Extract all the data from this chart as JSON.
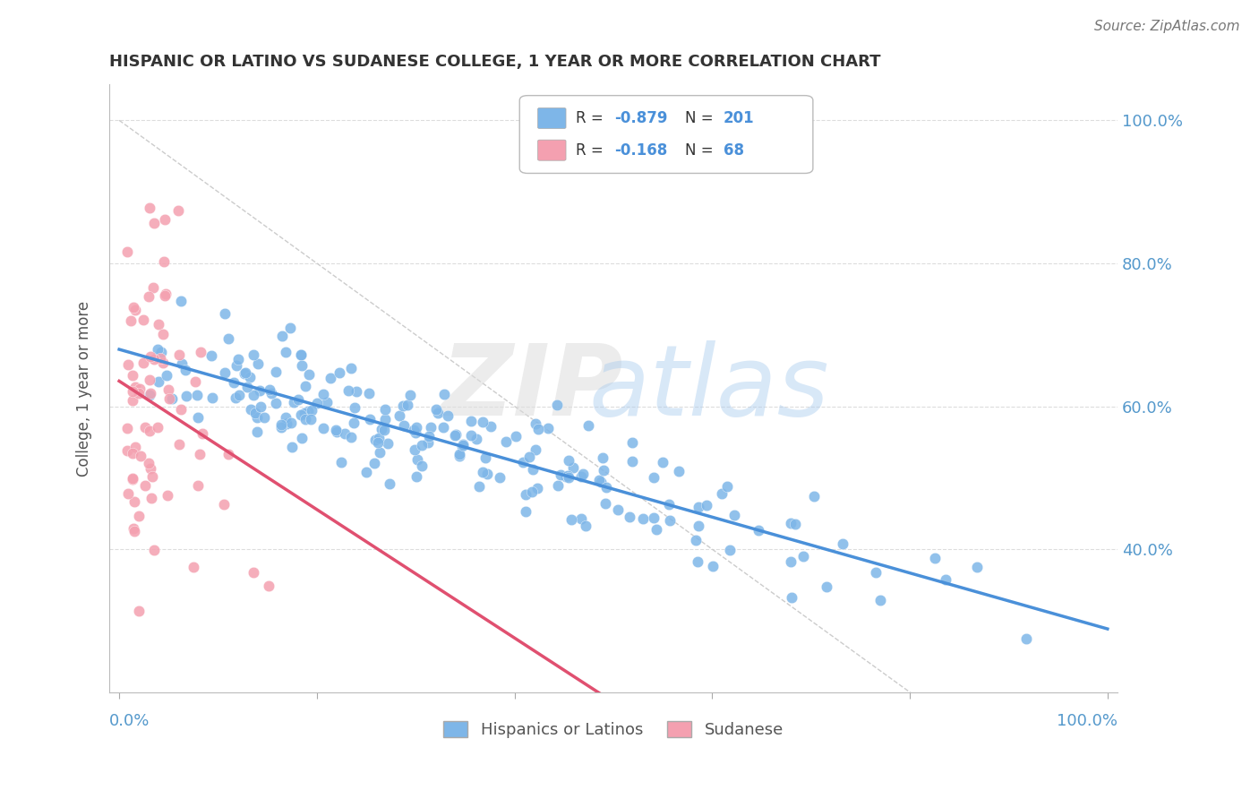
{
  "title": "HISPANIC OR LATINO VS SUDANESE COLLEGE, 1 YEAR OR MORE CORRELATION CHART",
  "source": "Source: ZipAtlas.com",
  "ylabel": "College, 1 year or more",
  "legend_label1": "Hispanics or Latinos",
  "legend_label2": "Sudanese",
  "r1": -0.879,
  "n1": 201,
  "r2": -0.168,
  "n2": 68,
  "blue_color": "#7EB6E8",
  "pink_color": "#F4A0B0",
  "blue_line_color": "#4A90D9",
  "pink_line_color": "#E05070",
  "title_color": "#333333",
  "axis_label_color": "#5599CC",
  "figsize": [
    14.06,
    8.92
  ],
  "dpi": 100
}
